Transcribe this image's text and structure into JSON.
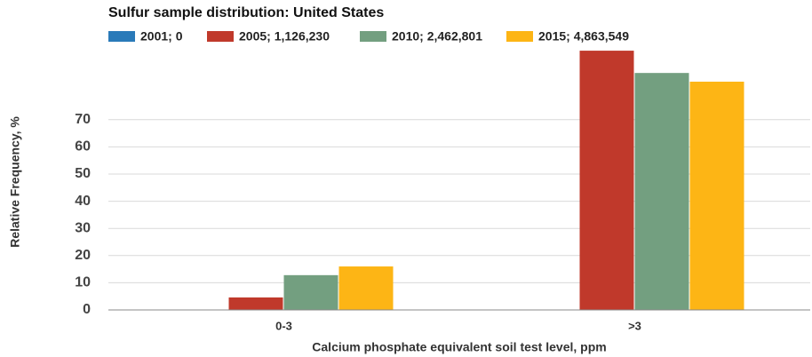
{
  "chart_data": {
    "type": "bar",
    "title": "Sulfur sample distribution: United States",
    "x_label": "Calcium phosphate equivalent soil test level, ppm",
    "y_label": "Relative Frequency, %",
    "categories": [
      "0-3",
      ">3"
    ],
    "series": [
      {
        "name": "2001; 0",
        "color": "#2a7ab9",
        "values": [
          0,
          0
        ]
      },
      {
        "name": "2005; 1,126,230",
        "color": "#c0392b",
        "values": [
          4.6,
          95.4
        ]
      },
      {
        "name": "2010; 2,462,801",
        "color": "#739f80",
        "values": [
          12.8,
          87.2
        ]
      },
      {
        "name": "2015; 4,863,549",
        "color": "#fdb515",
        "values": [
          16.0,
          84.0
        ]
      }
    ],
    "ylim": [
      0,
      100
    ],
    "yticks": [
      0,
      10,
      20,
      30,
      40,
      50,
      60,
      70
    ],
    "grid": true,
    "legend": "top"
  }
}
